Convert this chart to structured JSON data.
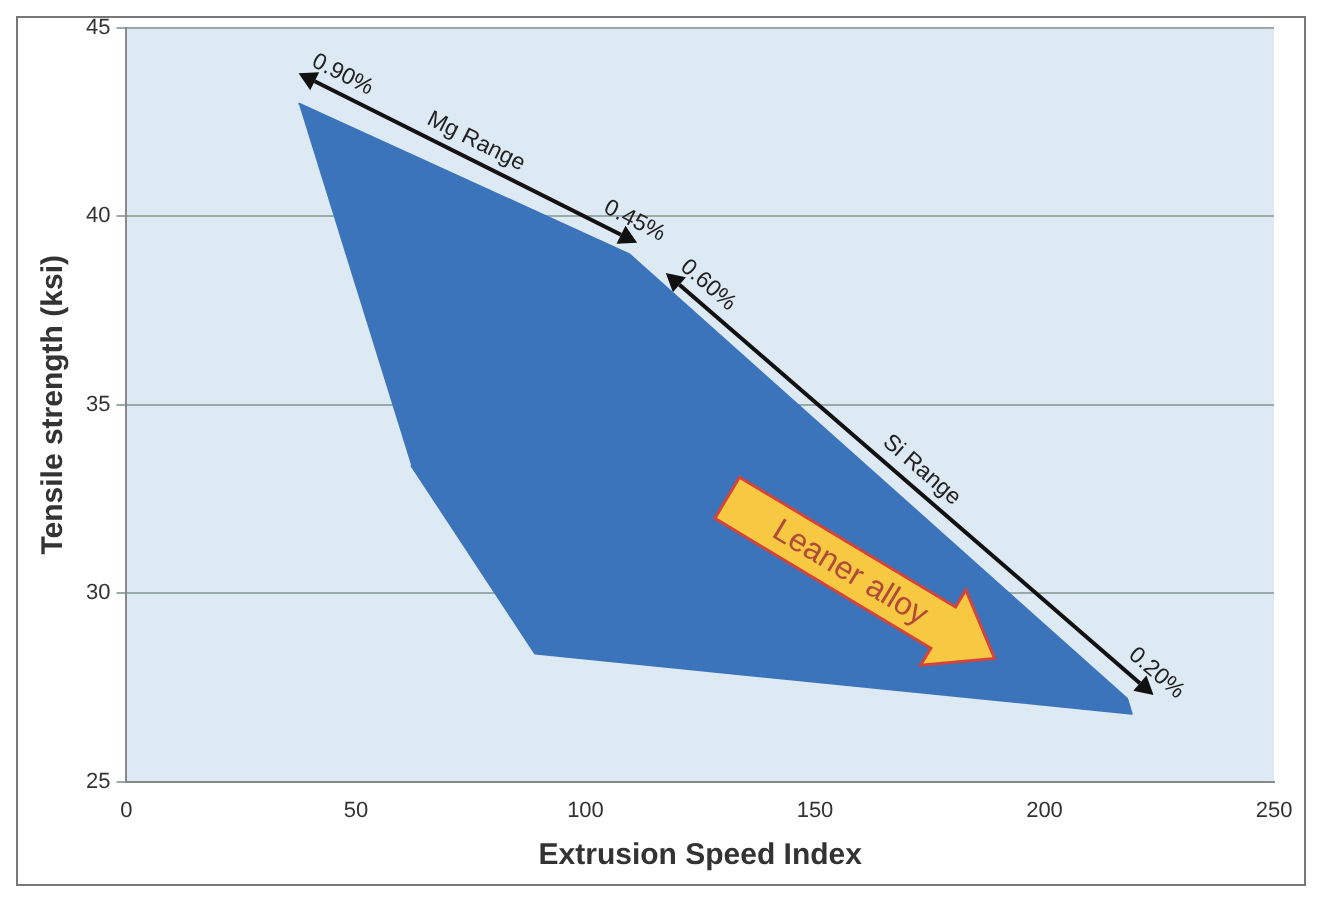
{
  "chart_data": {
    "type": "area",
    "xlabel": "Extrusion Speed Index",
    "ylabel": "Tensile strength (ksi)",
    "x": [
      37.5,
      109.5,
      218,
      219,
      89,
      62
    ],
    "values": [
      43,
      39,
      27.2,
      26.8,
      28.4,
      33.4
    ],
    "color": "#3b74ba",
    "xlim": [
      0,
      250
    ],
    "xticks": [
      0,
      50,
      100,
      150,
      200,
      250
    ],
    "ylim": [
      25,
      45
    ],
    "yticks": [
      25,
      30,
      35,
      40,
      45
    ],
    "grid": "y",
    "annotations": [
      "0.90%",
      "Mg Range",
      "0.45%",
      "0.60%",
      "Si Range",
      "0.20%",
      "Leaner alloy"
    ]
  }
}
